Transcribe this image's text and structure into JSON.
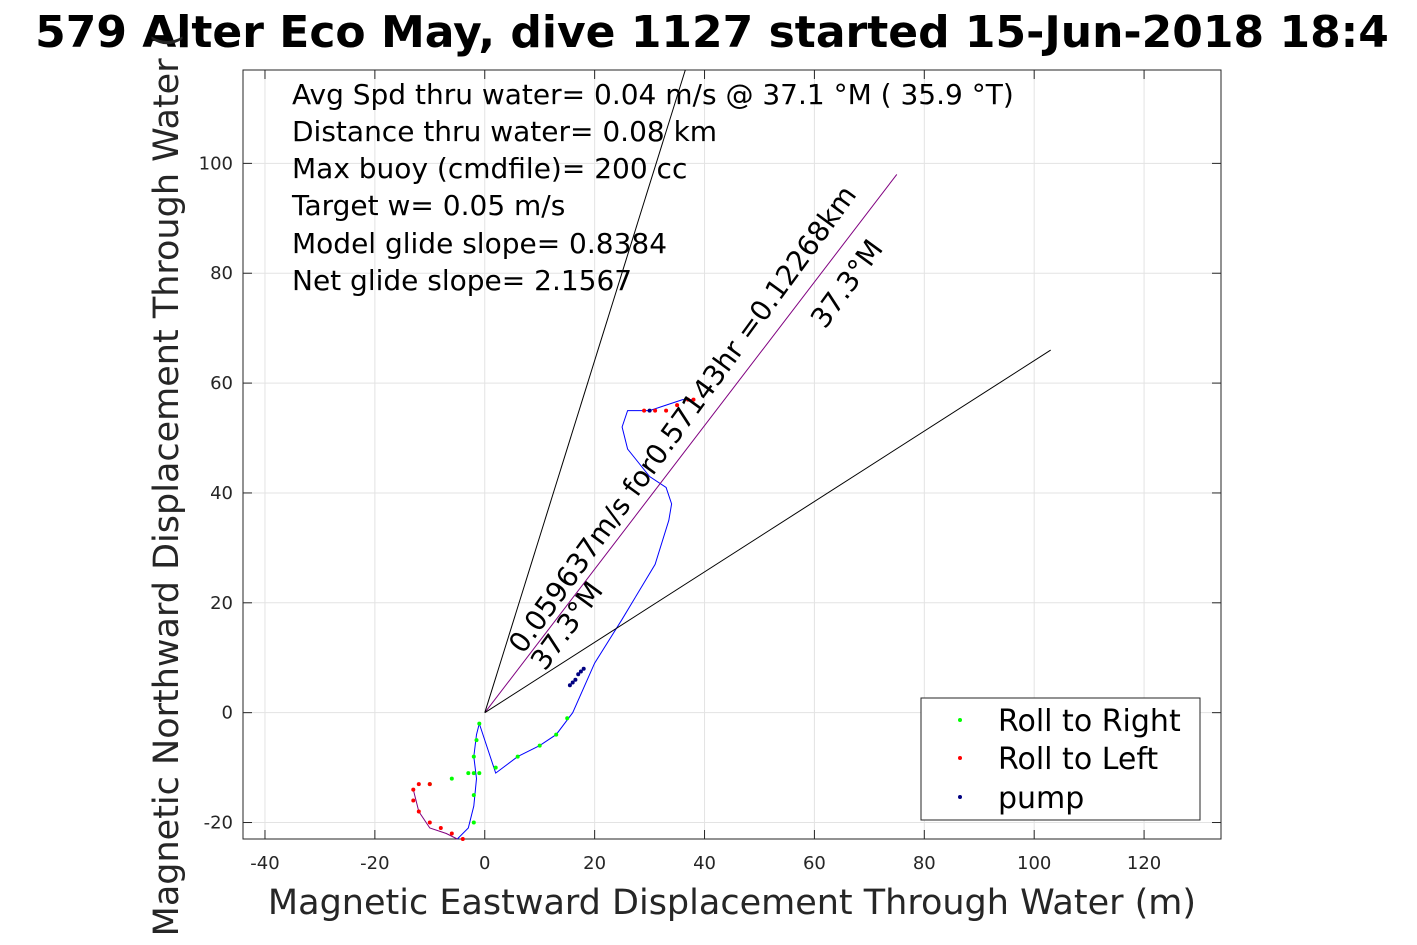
{
  "chart_data": {
    "type": "line",
    "title": "579 Alter Eco May, dive 1127 started 15-Jun-2018 18:4",
    "xlabel": "Magnetic Eastward Displacement Through Water (m)",
    "ylabel": "Magnetic Northward Displacement Through Water (",
    "xlim": [
      -44,
      134
    ],
    "ylim": [
      -23,
      117
    ],
    "xticks": [
      -40,
      -20,
      0,
      20,
      40,
      60,
      80,
      100,
      120
    ],
    "yticks": [
      -20,
      0,
      20,
      40,
      60,
      80,
      100
    ],
    "grid": true,
    "legend_position": "bottom-right",
    "annotations": [
      "Avg Spd thru water=  0.04 m/s @  37.1 °M ( 35.9 °T)",
      "Distance thru water=  0.08 km",
      "Max buoy (cmdfile)= 200 cc",
      "Target w= 0.05 m/s",
      "Model glide slope= 0.8384",
      "Net glide slope= 2.1567"
    ],
    "rotated_labels": {
      "upper": [
        "0.059637m/s for0.57143hr =0.12268km",
        "37.3°M"
      ],
      "lower": [
        "37.3°M"
      ]
    },
    "legend": [
      "Roll to Right",
      "Roll to Left",
      "pump"
    ],
    "series": [
      {
        "name": "Roll to Right",
        "color": "#00ff00",
        "x": [
          -1,
          -1.5,
          -2,
          -2,
          -1,
          2,
          6,
          10,
          13,
          15,
          -10,
          -6,
          -3,
          -2,
          -2
        ],
        "y": [
          -2,
          -5,
          -8,
          -11,
          -11,
          -10,
          -8,
          -6,
          -4,
          -1,
          -13,
          -12,
          -11,
          -15,
          -20
        ]
      },
      {
        "name": "Roll to Left",
        "color": "#ff0000",
        "x": [
          -10,
          -12,
          -13,
          -13,
          -12,
          -10,
          -8,
          -6,
          -4,
          29,
          31,
          33,
          35,
          37,
          38
        ],
        "y": [
          -13,
          -13,
          -14,
          -16,
          -18,
          -20,
          -21,
          -22,
          -23,
          55,
          55,
          55,
          56,
          57,
          57
        ]
      },
      {
        "name": "pump",
        "color": "#000080",
        "x": [
          15.5,
          16,
          16.5,
          17,
          17.5,
          18,
          30
        ],
        "y": [
          5,
          5.5,
          6,
          7,
          7.5,
          8,
          55
        ]
      }
    ],
    "lines": [
      {
        "name": "",
        "color": "#0000ff",
        "x": [
          -5,
          -3,
          -2,
          -1.5,
          -2,
          -1.5,
          -1,
          2,
          6,
          10,
          13,
          16,
          20,
          25,
          31,
          33.5,
          34,
          33,
          30,
          26,
          25,
          26,
          28,
          30,
          33,
          36,
          38
        ],
        "y": [
          -23,
          -21,
          -17,
          -12,
          -8,
          -4,
          -2,
          -11,
          -8,
          -6,
          -4,
          0,
          9,
          17,
          27,
          35,
          38,
          41,
          43,
          48,
          52,
          55,
          55,
          55,
          56,
          57,
          57
        ]
      },
      {
        "name": "",
        "color": "#800080",
        "x": [
          -13,
          -12,
          -10,
          -7,
          -5
        ],
        "y": [
          -14,
          -18,
          -21,
          -22,
          -23
        ]
      },
      {
        "name": "",
        "color": "#800080",
        "x": [
          0,
          75
        ],
        "y": [
          0,
          98
        ]
      },
      {
        "name": "",
        "color": "#000000",
        "x": [
          0,
          36.5
        ],
        "y": [
          0,
          117
        ]
      },
      {
        "name": "",
        "color": "#000000",
        "x": [
          0,
          103
        ],
        "y": [
          0,
          66
        ]
      }
    ]
  }
}
